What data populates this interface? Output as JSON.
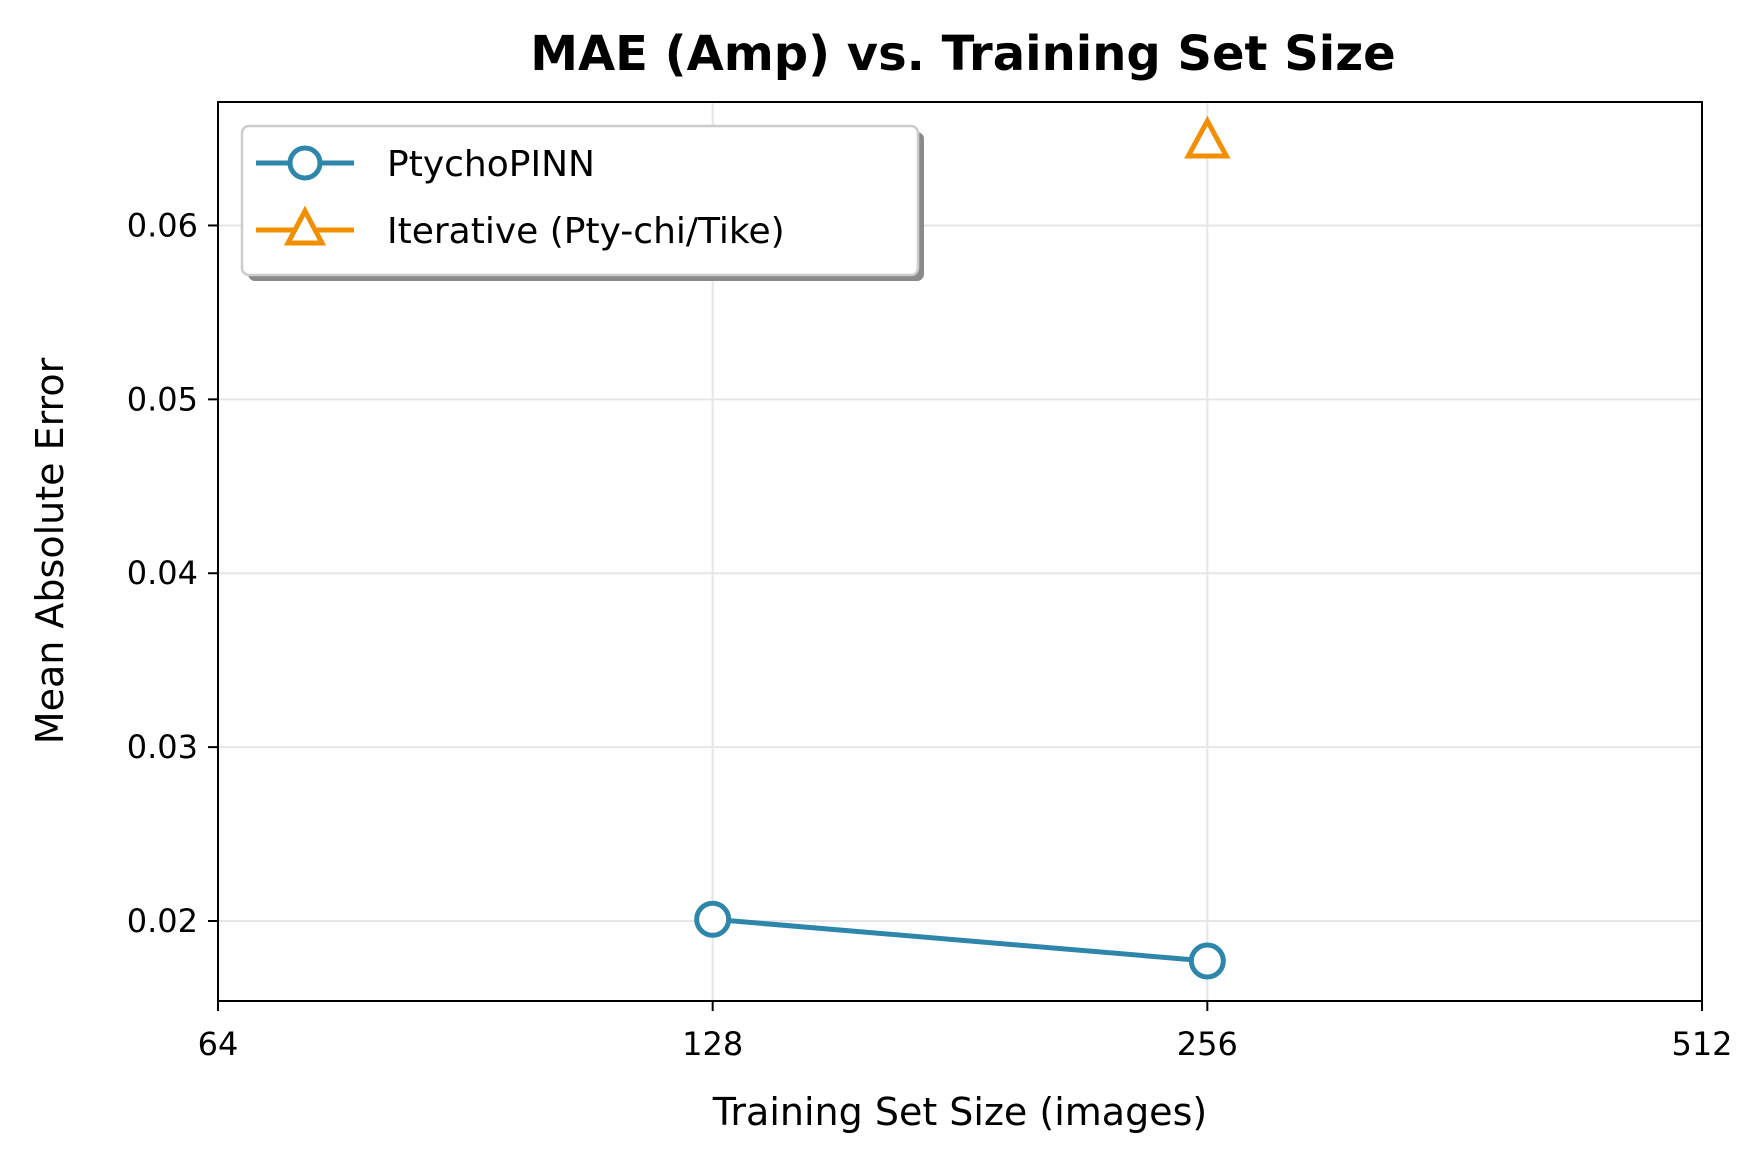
{
  "chart_data": {
    "type": "line",
    "title": "MAE (Amp) vs. Training Set Size",
    "xlabel": "Training Set Size (images)",
    "ylabel": "Mean Absolute Error",
    "x_scale": "log2",
    "xlim": [
      64,
      512
    ],
    "ylim": [
      0.0154,
      0.0671
    ],
    "x_ticks": [
      "64",
      "128",
      "256",
      "512"
    ],
    "x_tick_values": [
      64,
      128,
      256,
      512
    ],
    "y_ticks": [
      "0.02",
      "0.03",
      "0.04",
      "0.05",
      "0.06"
    ],
    "y_tick_values": [
      0.02,
      0.03,
      0.04,
      0.05,
      0.06
    ],
    "grid": true,
    "legend_position": "top-left",
    "series": [
      {
        "name": "PtychoPINN",
        "marker": "circle",
        "color": "#2E86AB",
        "points": [
          {
            "x": 128,
            "y": 0.0201
          },
          {
            "x": 256,
            "y": 0.0177
          }
        ]
      },
      {
        "name": "Iterative (Pty-chi/Tike)",
        "marker": "triangle",
        "color": "#F18F01",
        "points": [
          {
            "x": 256,
            "y": 0.0648
          }
        ]
      }
    ]
  }
}
